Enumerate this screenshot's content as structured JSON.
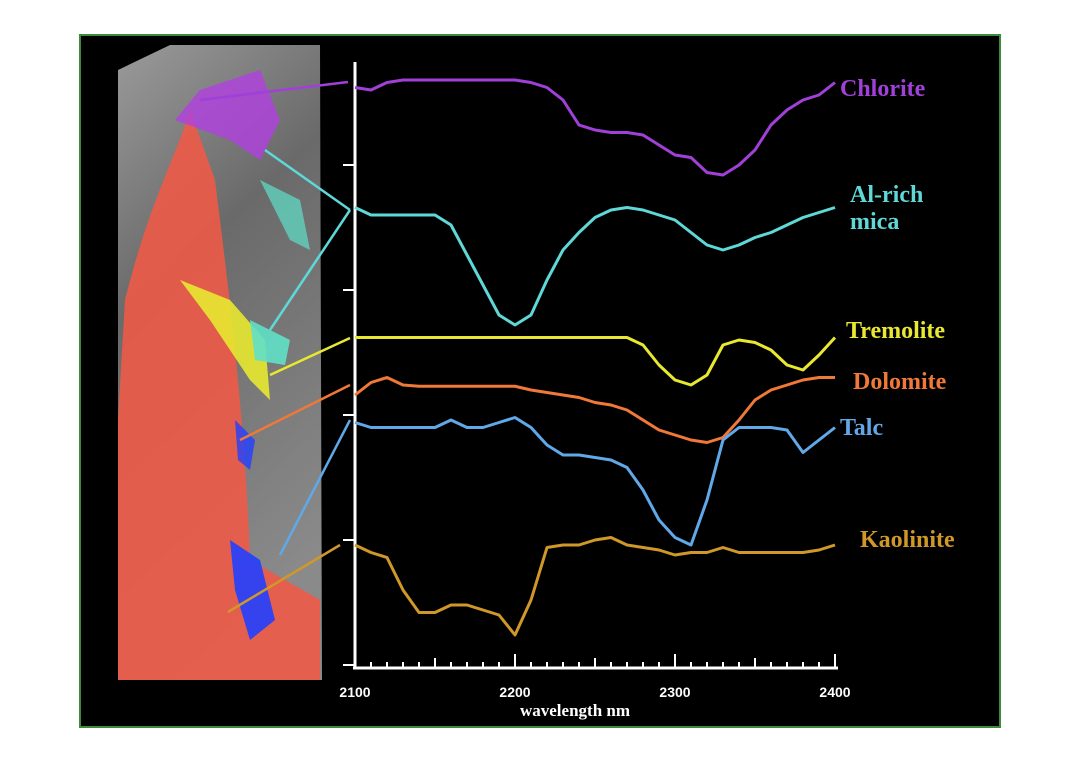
{
  "chart_data": {
    "type": "line",
    "xlabel": "wavelength  nm",
    "x": [
      2100,
      2110,
      2120,
      2130,
      2140,
      2150,
      2160,
      2170,
      2180,
      2190,
      2200,
      2210,
      2220,
      2230,
      2240,
      2250,
      2260,
      2270,
      2280,
      2290,
      2300,
      2310,
      2320,
      2330,
      2340,
      2350,
      2360,
      2370,
      2380,
      2390,
      2400
    ],
    "xlim": [
      2100,
      2400
    ],
    "xticks": [
      2100,
      2200,
      2300,
      2400
    ],
    "ylim": [
      0,
      4.8
    ],
    "yticks": [
      0,
      1,
      2,
      3,
      4
    ],
    "series": [
      {
        "name": "Chlorite",
        "color": "#a040d8",
        "values": [
          4.62,
          4.6,
          4.66,
          4.68,
          4.68,
          4.68,
          4.68,
          4.68,
          4.68,
          4.68,
          4.68,
          4.66,
          4.62,
          4.52,
          4.32,
          4.28,
          4.26,
          4.26,
          4.24,
          4.16,
          4.08,
          4.06,
          3.94,
          3.92,
          4.0,
          4.12,
          4.32,
          4.44,
          4.52,
          4.56,
          4.66
        ]
      },
      {
        "name": "Al-rich mica",
        "color": "#5fd8d8",
        "values": [
          3.66,
          3.6,
          3.6,
          3.6,
          3.6,
          3.6,
          3.52,
          3.28,
          3.04,
          2.8,
          2.72,
          2.8,
          3.08,
          3.32,
          3.46,
          3.58,
          3.64,
          3.66,
          3.64,
          3.6,
          3.56,
          3.46,
          3.36,
          3.32,
          3.36,
          3.42,
          3.46,
          3.52,
          3.58,
          3.62,
          3.66
        ]
      },
      {
        "name": "Tremolite",
        "color": "#e8e830",
        "values": [
          2.62,
          2.62,
          2.62,
          2.62,
          2.62,
          2.62,
          2.62,
          2.62,
          2.62,
          2.62,
          2.62,
          2.62,
          2.62,
          2.62,
          2.62,
          2.62,
          2.62,
          2.62,
          2.56,
          2.4,
          2.28,
          2.24,
          2.32,
          2.56,
          2.6,
          2.58,
          2.52,
          2.4,
          2.36,
          2.48,
          2.62
        ]
      },
      {
        "name": "Dolomite",
        "color": "#f07838",
        "values": [
          2.16,
          2.26,
          2.3,
          2.24,
          2.23,
          2.23,
          2.23,
          2.23,
          2.23,
          2.23,
          2.23,
          2.2,
          2.18,
          2.16,
          2.14,
          2.1,
          2.08,
          2.04,
          1.96,
          1.88,
          1.84,
          1.8,
          1.78,
          1.82,
          1.96,
          2.12,
          2.2,
          2.24,
          2.28,
          2.3,
          2.3
        ]
      },
      {
        "name": "Talc",
        "color": "#60a8e8",
        "values": [
          1.94,
          1.9,
          1.9,
          1.9,
          1.9,
          1.9,
          1.96,
          1.9,
          1.9,
          1.94,
          1.98,
          1.9,
          1.76,
          1.68,
          1.68,
          1.66,
          1.64,
          1.58,
          1.4,
          1.16,
          1.02,
          0.96,
          1.32,
          1.8,
          1.9,
          1.9,
          1.9,
          1.88,
          1.7,
          1.8,
          1.9
        ]
      },
      {
        "name": "Kaolinite",
        "color": "#d09828",
        "values": [
          0.96,
          0.9,
          0.86,
          0.6,
          0.42,
          0.42,
          0.48,
          0.48,
          0.44,
          0.4,
          0.24,
          0.52,
          0.94,
          0.96,
          0.96,
          1.0,
          1.02,
          0.96,
          0.94,
          0.92,
          0.88,
          0.9,
          0.9,
          0.94,
          0.9,
          0.9,
          0.9,
          0.9,
          0.9,
          0.92,
          0.96
        ]
      }
    ]
  }
}
